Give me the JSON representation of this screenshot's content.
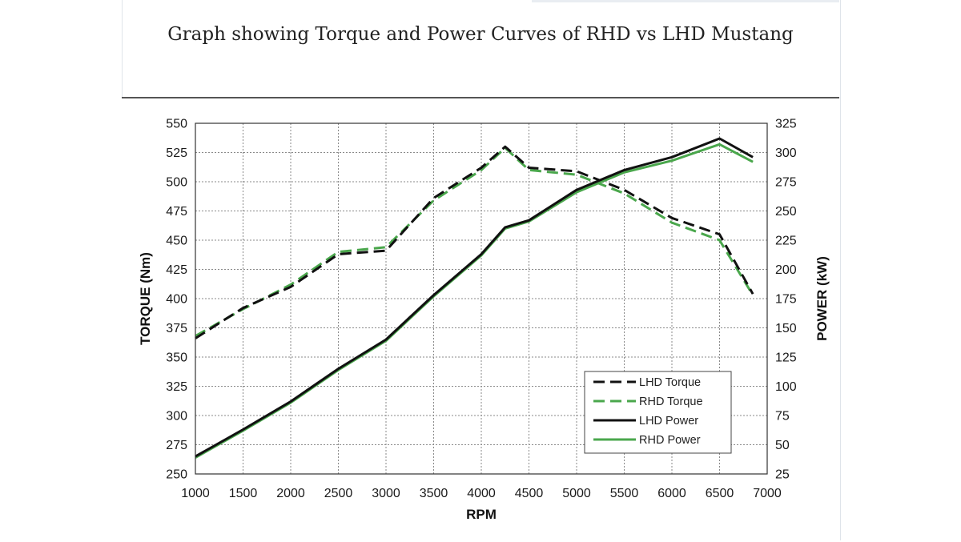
{
  "chart_data": {
    "type": "line",
    "title": "Graph showing Torque and Power Curves of RHD vs LHD Mustang",
    "xlabel": "RPM",
    "ylabel": "TORQUE (Nm)",
    "y2label": "POWER (kW)",
    "xlim": [
      1000,
      7000
    ],
    "ylim": [
      250,
      550
    ],
    "y2lim": [
      25,
      325
    ],
    "x_ticks": [
      1000,
      1500,
      2000,
      2500,
      3000,
      3500,
      4000,
      4500,
      5000,
      5500,
      6000,
      6500,
      7000
    ],
    "y_ticks": [
      250,
      275,
      300,
      325,
      350,
      375,
      400,
      425,
      450,
      475,
      500,
      525,
      550
    ],
    "y2_ticks": [
      25,
      50,
      75,
      100,
      125,
      150,
      175,
      200,
      225,
      250,
      275,
      300,
      325
    ],
    "grid": true,
    "legend_position": "bottom-right",
    "series": [
      {
        "name": "LHD Torque",
        "axis": "left",
        "color": "#111111",
        "dash": "dashed",
        "x": [
          1000,
          1500,
          2000,
          2500,
          3000,
          3500,
          4000,
          4250,
          4500,
          5000,
          5500,
          6000,
          6500,
          6850
        ],
        "values": [
          366,
          392,
          410,
          438,
          441,
          486,
          512,
          530,
          512,
          509,
          493,
          469,
          455,
          404
        ]
      },
      {
        "name": "RHD Torque",
        "axis": "left",
        "color": "#4aa74c",
        "dash": "dashed",
        "x": [
          1000,
          1500,
          2000,
          2500,
          3000,
          3500,
          4000,
          4250,
          4500,
          5000,
          5500,
          6000,
          6500,
          6850
        ],
        "values": [
          368,
          391,
          412,
          440,
          444,
          484,
          510,
          529,
          510,
          506,
          490,
          465,
          450,
          403
        ]
      },
      {
        "name": "LHD Power",
        "axis": "right",
        "color": "#111111",
        "dash": "solid",
        "x": [
          1000,
          1500,
          2000,
          2500,
          3000,
          3500,
          4000,
          4250,
          4500,
          5000,
          5500,
          6000,
          6500,
          6850
        ],
        "values": [
          40,
          63,
          87,
          115,
          140,
          178,
          213,
          236,
          242,
          268,
          285,
          296,
          312,
          296
        ]
      },
      {
        "name": "RHD Power",
        "axis": "right",
        "color": "#4aa74c",
        "dash": "solid",
        "x": [
          1000,
          1500,
          2000,
          2500,
          3000,
          3500,
          4000,
          4250,
          4500,
          5000,
          5500,
          6000,
          6500,
          6850
        ],
        "values": [
          39,
          62,
          86,
          114,
          139,
          177,
          212,
          235,
          241,
          266,
          283,
          293,
          307,
          292
        ]
      }
    ]
  }
}
